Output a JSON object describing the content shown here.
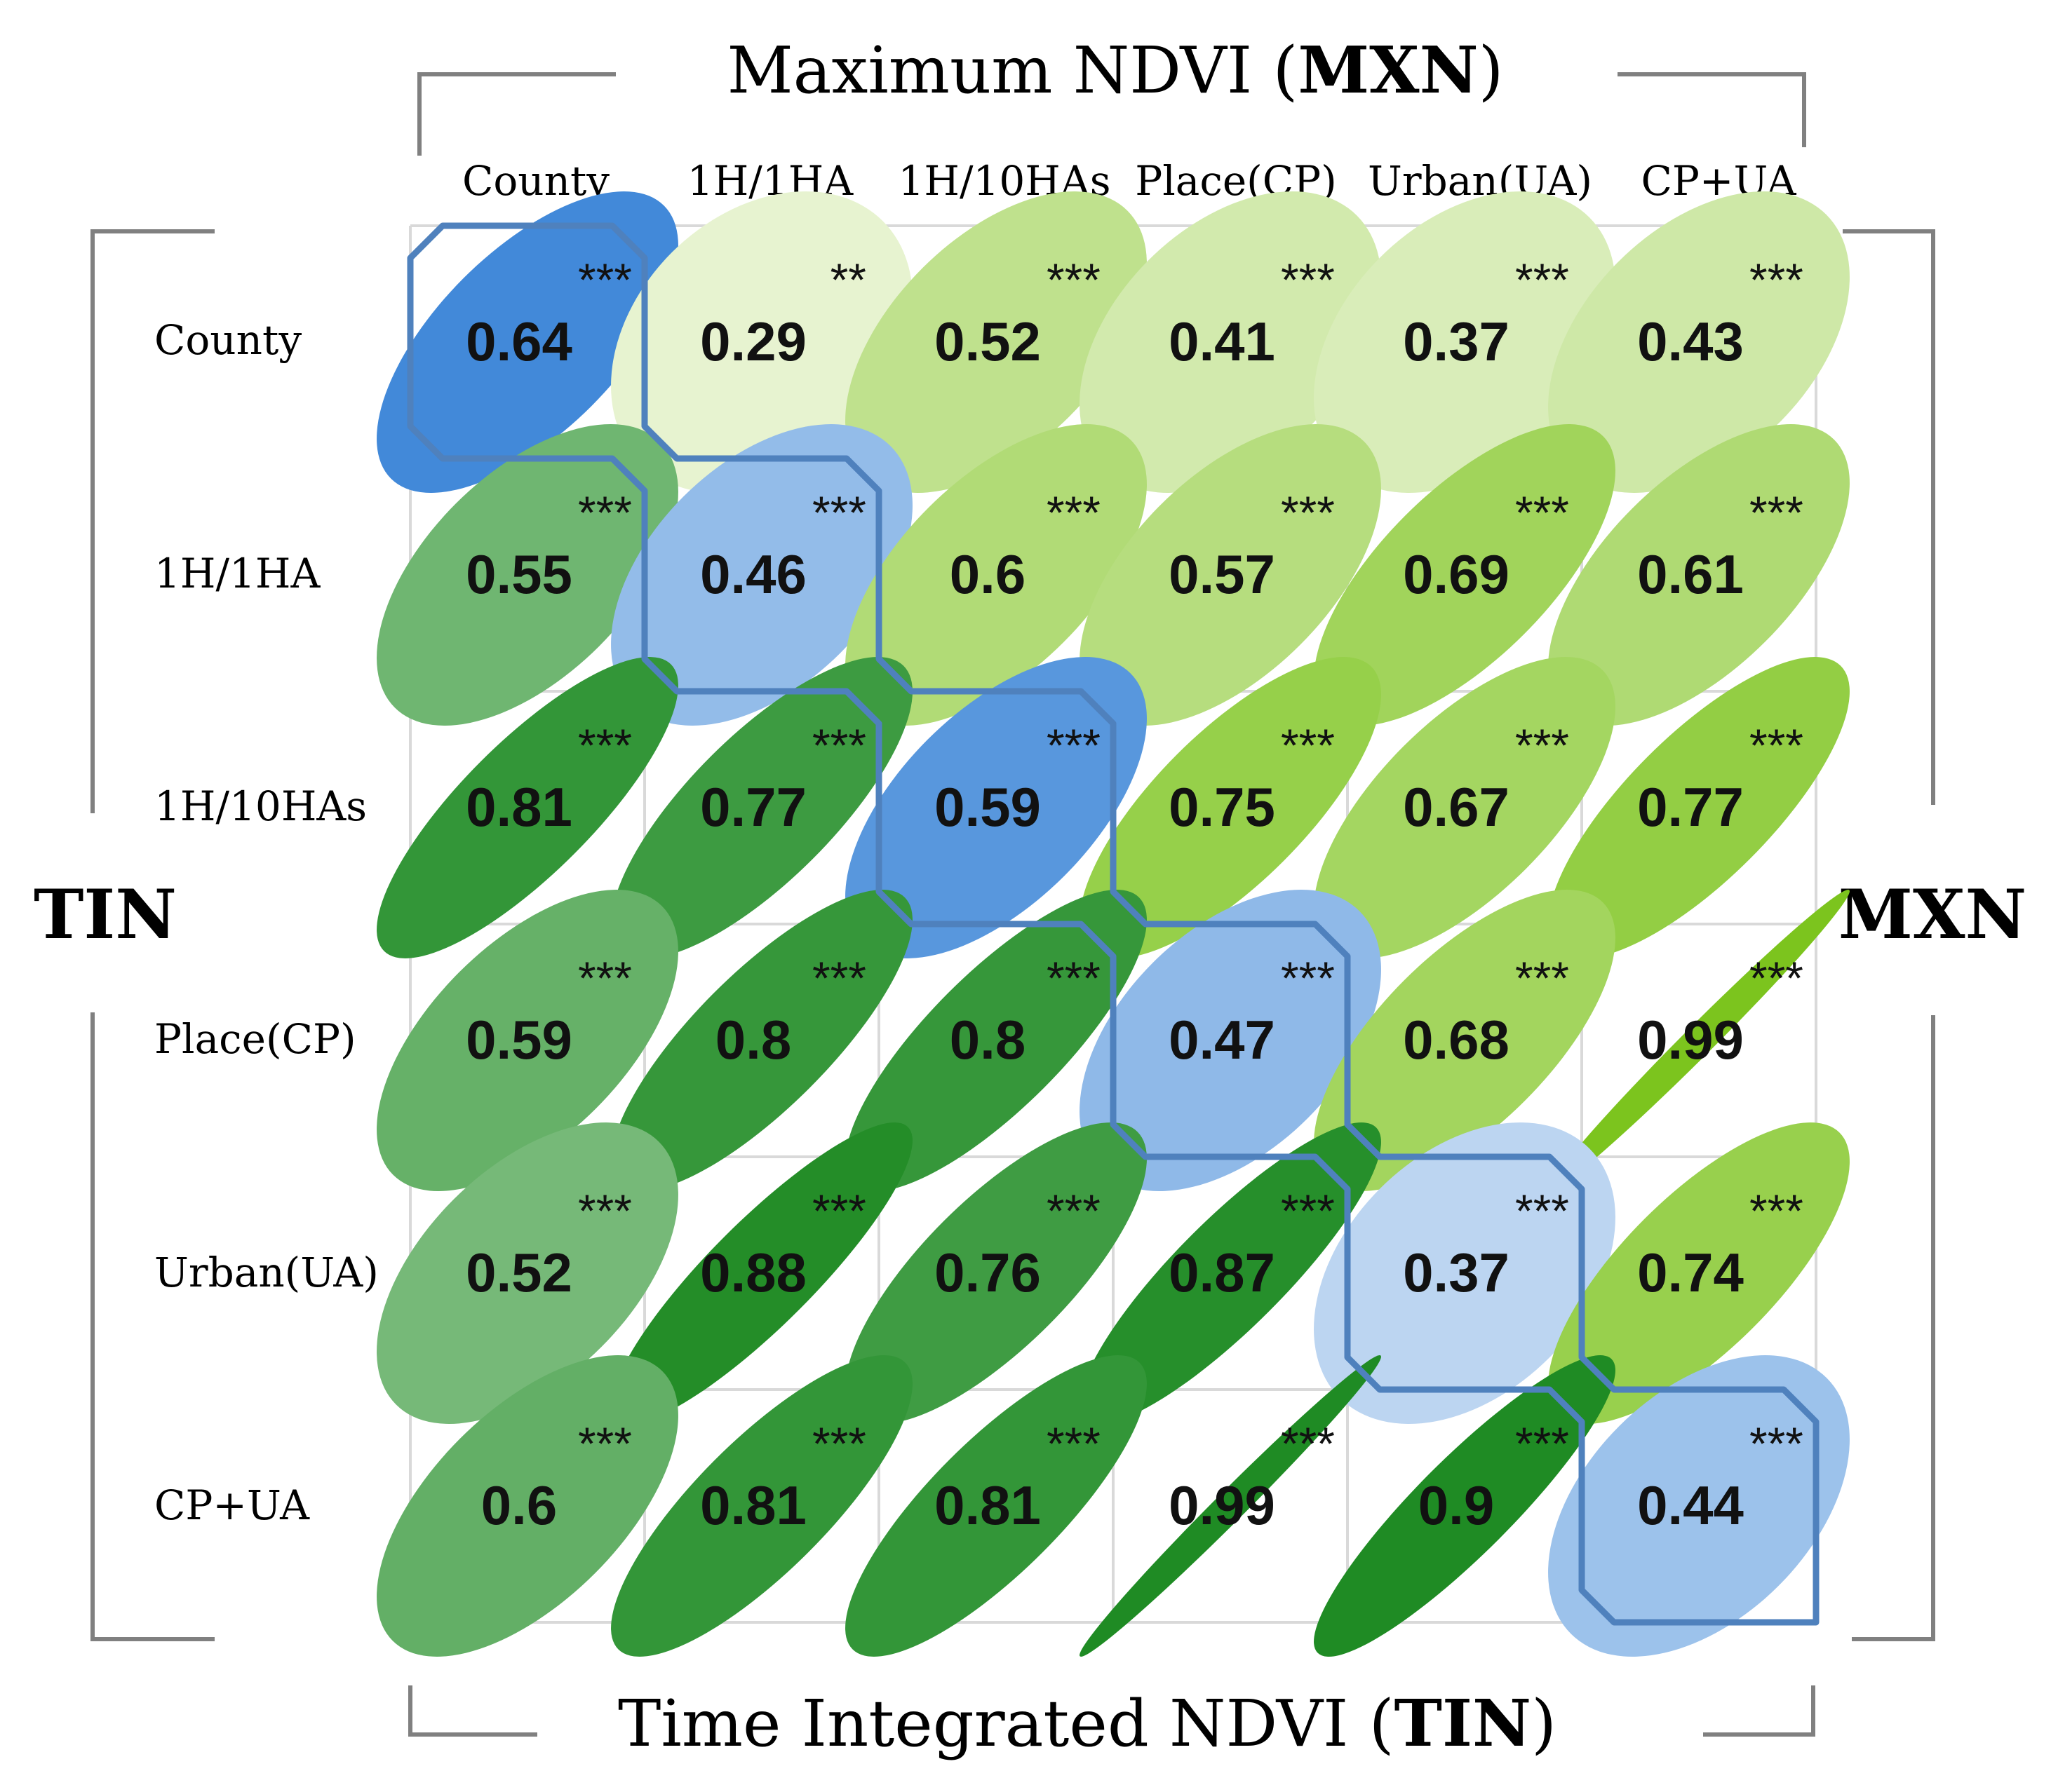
{
  "chart_data": {
    "type": "heatmap",
    "subtype": "correlation-ellipse-matrix",
    "title_top_prefix": "Maximum NDVI (",
    "title_top_bold": "MXN",
    "title_top_suffix": ")",
    "title_bottom_prefix": "Time Integrated NDVI (",
    "title_bottom_bold": "TIN",
    "title_bottom_suffix": ")",
    "left_label": "TIN",
    "right_label": "MXN",
    "categories": [
      "County",
      "1H/1HA",
      "1H/10HAs",
      "Place(CP)",
      "Urban(UA)",
      "CP+UA"
    ],
    "cells": [
      {
        "row": 0,
        "col": 0,
        "value": 0.64,
        "sig": "***",
        "group": "diag"
      },
      {
        "row": 0,
        "col": 1,
        "value": 0.29,
        "sig": "**",
        "group": "MXN"
      },
      {
        "row": 0,
        "col": 2,
        "value": 0.52,
        "sig": "***",
        "group": "MXN"
      },
      {
        "row": 0,
        "col": 3,
        "value": 0.41,
        "sig": "***",
        "group": "MXN"
      },
      {
        "row": 0,
        "col": 4,
        "value": 0.37,
        "sig": "***",
        "group": "MXN"
      },
      {
        "row": 0,
        "col": 5,
        "value": 0.43,
        "sig": "***",
        "group": "MXN"
      },
      {
        "row": 1,
        "col": 0,
        "value": 0.55,
        "sig": "***",
        "group": "TIN"
      },
      {
        "row": 1,
        "col": 1,
        "value": 0.46,
        "sig": "***",
        "group": "diag"
      },
      {
        "row": 1,
        "col": 2,
        "value": 0.6,
        "sig": "***",
        "group": "MXN"
      },
      {
        "row": 1,
        "col": 3,
        "value": 0.57,
        "sig": "***",
        "group": "MXN"
      },
      {
        "row": 1,
        "col": 4,
        "value": 0.69,
        "sig": "***",
        "group": "MXN"
      },
      {
        "row": 1,
        "col": 5,
        "value": 0.61,
        "sig": "***",
        "group": "MXN"
      },
      {
        "row": 2,
        "col": 0,
        "value": 0.81,
        "sig": "***",
        "group": "TIN"
      },
      {
        "row": 2,
        "col": 1,
        "value": 0.77,
        "sig": "***",
        "group": "TIN"
      },
      {
        "row": 2,
        "col": 2,
        "value": 0.59,
        "sig": "***",
        "group": "diag"
      },
      {
        "row": 2,
        "col": 3,
        "value": 0.75,
        "sig": "***",
        "group": "MXN"
      },
      {
        "row": 2,
        "col": 4,
        "value": 0.67,
        "sig": "***",
        "group": "MXN"
      },
      {
        "row": 2,
        "col": 5,
        "value": 0.77,
        "sig": "***",
        "group": "MXN"
      },
      {
        "row": 3,
        "col": 0,
        "value": 0.59,
        "sig": "***",
        "group": "TIN"
      },
      {
        "row": 3,
        "col": 1,
        "value": 0.8,
        "sig": "***",
        "group": "TIN"
      },
      {
        "row": 3,
        "col": 2,
        "value": 0.8,
        "sig": "***",
        "group": "TIN"
      },
      {
        "row": 3,
        "col": 3,
        "value": 0.47,
        "sig": "***",
        "group": "diag"
      },
      {
        "row": 3,
        "col": 4,
        "value": 0.68,
        "sig": "***",
        "group": "MXN"
      },
      {
        "row": 3,
        "col": 5,
        "value": 0.99,
        "sig": "***",
        "group": "MXN"
      },
      {
        "row": 4,
        "col": 0,
        "value": 0.52,
        "sig": "***",
        "group": "TIN"
      },
      {
        "row": 4,
        "col": 1,
        "value": 0.88,
        "sig": "***",
        "group": "TIN"
      },
      {
        "row": 4,
        "col": 2,
        "value": 0.76,
        "sig": "***",
        "group": "TIN"
      },
      {
        "row": 4,
        "col": 3,
        "value": 0.87,
        "sig": "***",
        "group": "TIN"
      },
      {
        "row": 4,
        "col": 4,
        "value": 0.37,
        "sig": "***",
        "group": "diag"
      },
      {
        "row": 4,
        "col": 5,
        "value": 0.74,
        "sig": "***",
        "group": "MXN"
      },
      {
        "row": 5,
        "col": 0,
        "value": 0.6,
        "sig": "***",
        "group": "TIN"
      },
      {
        "row": 5,
        "col": 1,
        "value": 0.81,
        "sig": "***",
        "group": "TIN"
      },
      {
        "row": 5,
        "col": 2,
        "value": 0.81,
        "sig": "***",
        "group": "TIN"
      },
      {
        "row": 5,
        "col": 3,
        "value": 0.99,
        "sig": "***",
        "group": "TIN"
      },
      {
        "row": 5,
        "col": 4,
        "value": 0.9,
        "sig": "***",
        "group": "TIN"
      },
      {
        "row": 5,
        "col": 5,
        "value": 0.44,
        "sig": "***",
        "group": "diag"
      }
    ],
    "colors": {
      "diag": [
        "#c5dbf3",
        "#3d86d8"
      ],
      "MXN": [
        "#eef6dc",
        "#7cc41e"
      ],
      "TIN": [
        "#b3dab3",
        "#1f8b24"
      ],
      "diag_outline": "#4f81bd",
      "grid": "#d9d9d9",
      "bracket": "#808080"
    }
  }
}
